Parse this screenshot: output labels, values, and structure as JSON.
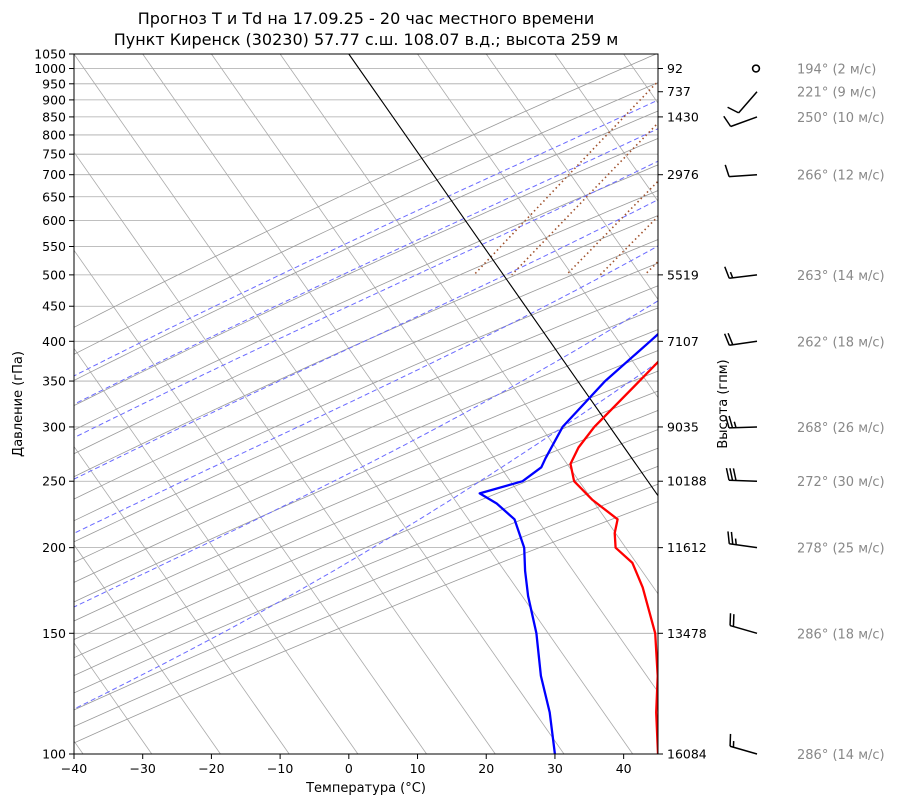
{
  "chart_data": {
    "type": "line",
    "title": "Прогноз T и Td на 17.09.25 - 20 час местного времени",
    "subtitle": "Пункт Киренск (30230) 57.77 с.ш. 108.07 в.д.; высота 259 м",
    "xlabel": "Температура (°C)",
    "ylabel": "Давление (гПа)",
    "ylabel_right": "Высота (гпм)",
    "xlim": [
      -40,
      45
    ],
    "ylim": [
      1050,
      100
    ],
    "y_scale": "log",
    "grid": true,
    "x_ticks": [
      "−40",
      "−30",
      "−20",
      "−10",
      "0",
      "10",
      "20",
      "30",
      "40"
    ],
    "y_ticks": [
      "100",
      "150",
      "200",
      "250",
      "300",
      "350",
      "400",
      "450",
      "500",
      "550",
      "600",
      "650",
      "700",
      "750",
      "800",
      "850",
      "900",
      "950",
      "1000",
      "1050"
    ],
    "height_ticks": [
      {
        "p": 100,
        "label": "16084"
      },
      {
        "p": 150,
        "label": "13478"
      },
      {
        "p": 200,
        "label": "11612"
      },
      {
        "p": 250,
        "label": "10188"
      },
      {
        "p": 300,
        "label": "9035"
      },
      {
        "p": 400,
        "label": "7107"
      },
      {
        "p": 500,
        "label": "5519"
      },
      {
        "p": 700,
        "label": "2976"
      },
      {
        "p": 850,
        "label": "1430"
      },
      {
        "p": 925,
        "label": "737"
      },
      {
        "p": 1000,
        "label": "92"
      }
    ],
    "series": [
      {
        "color": "#ff0000",
        "points": [
          [
            990,
            13.6
          ],
          [
            970,
            13.9
          ],
          [
            950,
            13.8
          ],
          [
            925,
            13.5
          ],
          [
            900,
            13.2
          ],
          [
            870,
            12.8
          ],
          [
            850,
            12.6
          ],
          [
            825,
            12.4
          ],
          [
            800,
            12.0
          ],
          [
            780,
            11.5
          ],
          [
            750,
            11.2
          ],
          [
            700,
            10.8
          ],
          [
            650,
            10.5
          ],
          [
            600,
            10.0
          ],
          [
            550,
            9.2
          ],
          [
            500,
            8.3
          ],
          [
            450,
            7.2
          ],
          [
            400,
            5.9
          ],
          [
            350,
            4.3
          ],
          [
            300,
            2.4
          ],
          [
            280,
            2.2
          ],
          [
            265,
            2.7
          ],
          [
            250,
            5.0
          ],
          [
            235,
            9.5
          ],
          [
            220,
            15.2
          ],
          [
            210,
            16.2
          ],
          [
            200,
            17.8
          ],
          [
            190,
            21.8
          ],
          [
            175,
            25.8
          ],
          [
            150,
            32.3
          ],
          [
            130,
            37.0
          ],
          [
            115,
            40.5
          ],
          [
            100,
            45.0
          ]
        ]
      },
      {
        "color": "#0000ff",
        "points": [
          [
            990,
            12.0
          ],
          [
            970,
            12.1
          ],
          [
            950,
            11.8
          ],
          [
            925,
            11.5
          ],
          [
            900,
            10.8
          ],
          [
            870,
            10.4
          ],
          [
            850,
            10.5
          ],
          [
            825,
            10.1
          ],
          [
            800,
            9.6
          ],
          [
            780,
            8.5
          ],
          [
            750,
            7.8
          ],
          [
            700,
            7.7
          ],
          [
            650,
            8.2
          ],
          [
            600,
            8.0
          ],
          [
            550,
            6.8
          ],
          [
            500,
            4.6
          ],
          [
            450,
            3.9
          ],
          [
            400,
            1.8
          ],
          [
            350,
            -0.7
          ],
          [
            300,
            -2.2
          ],
          [
            270,
            -1.5
          ],
          [
            262,
            -1.2
          ],
          [
            250,
            -2.5
          ],
          [
            240,
            -7.5
          ],
          [
            232,
            -4.0
          ],
          [
            220,
            0.2
          ],
          [
            200,
            4.5
          ],
          [
            185,
            7.0
          ],
          [
            170,
            10.0
          ],
          [
            150,
            15.0
          ],
          [
            130,
            20.0
          ],
          [
            115,
            25.0
          ],
          [
            100,
            30.0
          ]
        ]
      }
    ],
    "winds": [
      {
        "p": 100,
        "dir": 286,
        "spd": 14,
        "label": "286° (14 м/с)"
      },
      {
        "p": 150,
        "dir": 286,
        "spd": 18,
        "label": "286° (18 м/с)"
      },
      {
        "p": 200,
        "dir": 278,
        "spd": 25,
        "label": "278° (25 м/с)"
      },
      {
        "p": 250,
        "dir": 272,
        "spd": 30,
        "label": "272° (30 м/с)"
      },
      {
        "p": 300,
        "dir": 268,
        "spd": 26,
        "label": "268° (26 м/с)"
      },
      {
        "p": 400,
        "dir": 262,
        "spd": 18,
        "label": "262° (18 м/с)"
      },
      {
        "p": 500,
        "dir": 263,
        "spd": 14,
        "label": "263° (14 м/с)"
      },
      {
        "p": 700,
        "dir": 266,
        "spd": 12,
        "label": "266° (12 м/с)"
      },
      {
        "p": 850,
        "dir": 250,
        "spd": 10,
        "label": "250° (10 м/с)"
      },
      {
        "p": 925,
        "dir": 221,
        "spd": 9,
        "label": "221° (9 м/с)"
      },
      {
        "p": 1000,
        "dir": 194,
        "spd": 2,
        "label": "194° (2 м/с)"
      }
    ]
  }
}
